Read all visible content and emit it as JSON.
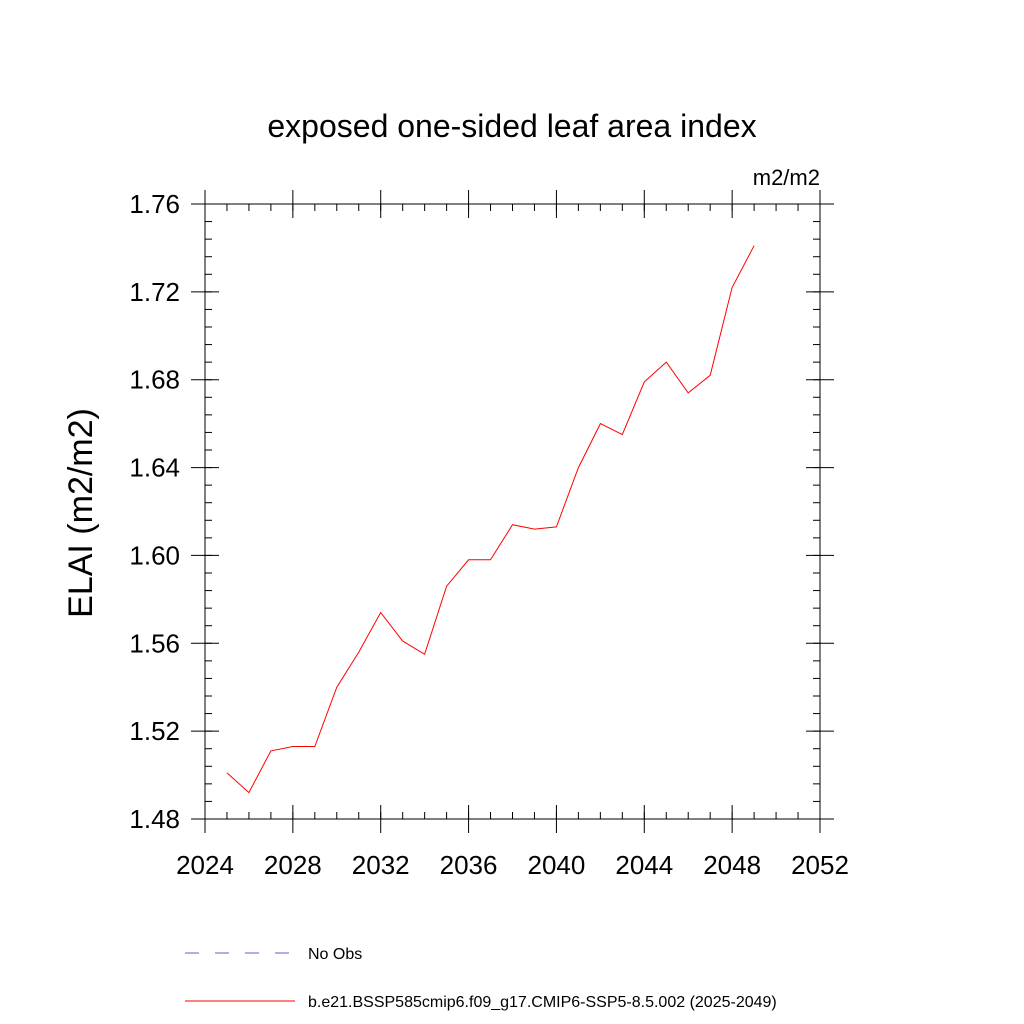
{
  "chart_data": {
    "type": "line",
    "title": "exposed one-sided leaf area index",
    "units": "m2/m2",
    "ylabel": "ELAI  (m2/m2)",
    "xlabel": "",
    "xlim": [
      2024,
      2052
    ],
    "ylim": [
      1.48,
      1.76
    ],
    "xticks": [
      2024,
      2028,
      2032,
      2036,
      2040,
      2044,
      2048,
      2052
    ],
    "yticks": [
      "1.48",
      "1.52",
      "1.56",
      "1.60",
      "1.64",
      "1.68",
      "1.72",
      "1.76"
    ],
    "grid": false,
    "legend_position": "bottom",
    "series": [
      {
        "name": "No Obs",
        "color": "#6a5acd",
        "style": "dashed",
        "x": [],
        "y": []
      },
      {
        "name": "b.e21.BSSP585cmip6.f09_g17.CMIP6-SSP5-8.5.002 (2025-2049)",
        "color": "#ff0000",
        "style": "solid",
        "x": [
          2025,
          2026,
          2027,
          2028,
          2029,
          2030,
          2031,
          2032,
          2033,
          2034,
          2035,
          2036,
          2037,
          2038,
          2039,
          2040,
          2041,
          2042,
          2043,
          2044,
          2045,
          2046,
          2047,
          2048,
          2049
        ],
        "y": [
          1.501,
          1.492,
          1.511,
          1.513,
          1.513,
          1.54,
          1.556,
          1.574,
          1.561,
          1.555,
          1.586,
          1.598,
          1.598,
          1.614,
          1.612,
          1.613,
          1.64,
          1.66,
          1.655,
          1.679,
          1.688,
          1.674,
          1.682,
          1.722,
          1.741
        ]
      }
    ]
  }
}
